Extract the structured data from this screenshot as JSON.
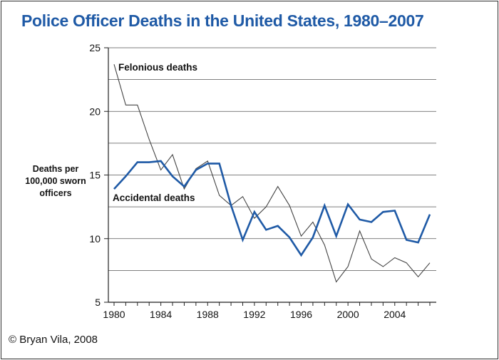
{
  "chart_data": {
    "type": "line",
    "title": "Police Officer Deaths in the United States, 1980–2007",
    "ylabel": "Deaths per\n100,000 sworn\nofficers",
    "xlabel": "",
    "x": [
      1980,
      1981,
      1982,
      1983,
      1984,
      1985,
      1986,
      1987,
      1988,
      1989,
      1990,
      1991,
      1992,
      1993,
      1994,
      1995,
      1996,
      1997,
      1998,
      1999,
      2000,
      2001,
      2002,
      2003,
      2004,
      2005,
      2006,
      2007
    ],
    "series": [
      {
        "name": "Felonious deaths",
        "color": "#444444",
        "values": [
          23.7,
          20.5,
          20.5,
          17.8,
          15.4,
          16.6,
          13.9,
          15.5,
          16.1,
          13.4,
          12.6,
          13.3,
          11.6,
          12.5,
          14.1,
          12.6,
          10.2,
          11.3,
          9.5,
          6.6,
          7.8,
          10.6,
          8.4,
          7.8,
          8.5,
          8.1,
          7.0,
          8.1
        ]
      },
      {
        "name": "Accidental deaths",
        "color": "#1f5aa6",
        "values": [
          13.9,
          14.9,
          16.0,
          16.0,
          16.1,
          14.9,
          14.1,
          15.4,
          15.9,
          15.9,
          12.6,
          9.9,
          12.1,
          10.7,
          11.0,
          10.1,
          8.7,
          10.1,
          12.6,
          10.2,
          12.7,
          11.5,
          11.3,
          12.1,
          12.2,
          9.9,
          9.7,
          11.9
        ]
      }
    ],
    "ylim": [
      5,
      25
    ],
    "yticks": [
      5,
      10,
      15,
      20,
      25
    ],
    "xlim": [
      1980,
      2007
    ],
    "xtick_labels": [
      1980,
      1984,
      1988,
      1992,
      1996,
      2000,
      2004
    ],
    "grid": "horizontal"
  },
  "credit": "© Bryan Vila, 2008"
}
